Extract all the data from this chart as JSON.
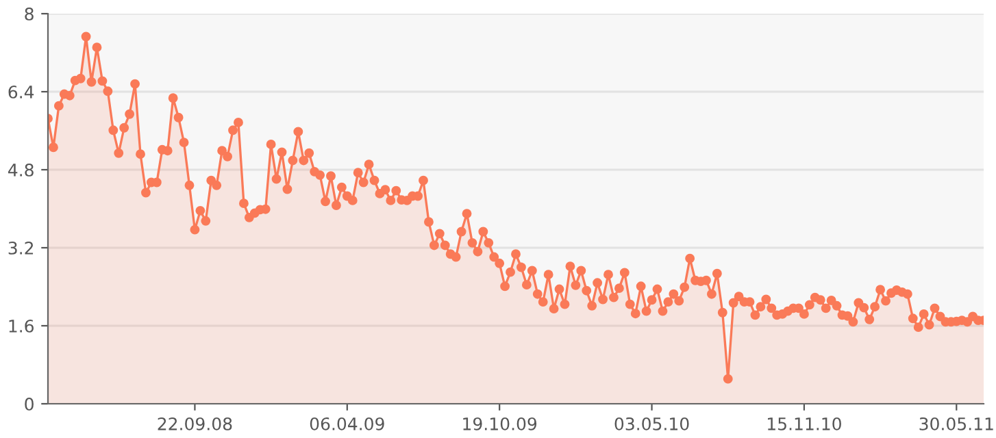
{
  "chart_data": {
    "type": "area",
    "marker": "circle",
    "grid": "y",
    "xlim": [
      "2008-03-17",
      "2011-07-04"
    ],
    "xticks": [
      {
        "value": "2008-09-22",
        "label": "22.09.08"
      },
      {
        "value": "2009-04-06",
        "label": "06.04.09"
      },
      {
        "value": "2009-10-19",
        "label": "19.10.09"
      },
      {
        "value": "2010-05-03",
        "label": "03.05.10"
      },
      {
        "value": "2010-11-15",
        "label": "15.11.10"
      },
      {
        "value": "2011-05-30",
        "label": "30.05.11"
      }
    ],
    "ylim": [
      0,
      8
    ],
    "yticks": [
      0,
      1.6,
      3.2,
      4.8,
      6.4,
      8
    ],
    "series": [
      {
        "color": "#fa7a58",
        "x": [
          "2008-03-17",
          "2008-03-24",
          "2008-03-31",
          "2008-04-07",
          "2008-04-14",
          "2008-04-21",
          "2008-04-28",
          "2008-05-05",
          "2008-05-12",
          "2008-05-19",
          "2008-05-26",
          "2008-06-02",
          "2008-06-09",
          "2008-06-16",
          "2008-06-23",
          "2008-06-30",
          "2008-07-07",
          "2008-07-14",
          "2008-07-21",
          "2008-07-28",
          "2008-08-04",
          "2008-08-11",
          "2008-08-18",
          "2008-08-25",
          "2008-09-01",
          "2008-09-08",
          "2008-09-15",
          "2008-09-22",
          "2008-09-29",
          "2008-10-06",
          "2008-10-13",
          "2008-10-20",
          "2008-10-27",
          "2008-11-03",
          "2008-11-10",
          "2008-11-17",
          "2008-11-24",
          "2008-12-01",
          "2008-12-08",
          "2008-12-15",
          "2008-12-22",
          "2008-12-29",
          "2009-01-05",
          "2009-01-12",
          "2009-01-19",
          "2009-01-26",
          "2009-02-02",
          "2009-02-09",
          "2009-02-16",
          "2009-02-23",
          "2009-03-02",
          "2009-03-09",
          "2009-03-16",
          "2009-03-23",
          "2009-03-30",
          "2009-04-06",
          "2009-04-13",
          "2009-04-20",
          "2009-04-27",
          "2009-05-04",
          "2009-05-11",
          "2009-05-18",
          "2009-05-25",
          "2009-06-01",
          "2009-06-08",
          "2009-06-15",
          "2009-06-22",
          "2009-06-29",
          "2009-07-06",
          "2009-07-13",
          "2009-07-20",
          "2009-07-27",
          "2009-08-03",
          "2009-08-10",
          "2009-08-17",
          "2009-08-24",
          "2009-08-31",
          "2009-09-07",
          "2009-09-14",
          "2009-09-21",
          "2009-09-28",
          "2009-10-05",
          "2009-10-12",
          "2009-10-19",
          "2009-10-26",
          "2009-11-02",
          "2009-11-09",
          "2009-11-16",
          "2009-11-23",
          "2009-11-30",
          "2009-12-07",
          "2009-12-14",
          "2009-12-21",
          "2009-12-28",
          "2010-01-04",
          "2010-01-11",
          "2010-01-18",
          "2010-01-25",
          "2010-02-01",
          "2010-02-08",
          "2010-02-15",
          "2010-02-22",
          "2010-03-01",
          "2010-03-08",
          "2010-03-15",
          "2010-03-22",
          "2010-03-29",
          "2010-04-05",
          "2010-04-12",
          "2010-04-19",
          "2010-04-26",
          "2010-05-03",
          "2010-05-10",
          "2010-05-17",
          "2010-05-24",
          "2010-05-31",
          "2010-06-07",
          "2010-06-14",
          "2010-06-21",
          "2010-06-28",
          "2010-07-05",
          "2010-07-12",
          "2010-07-19",
          "2010-07-26",
          "2010-08-02",
          "2010-08-09",
          "2010-08-16",
          "2010-08-23",
          "2010-08-30",
          "2010-09-06",
          "2010-09-13",
          "2010-09-20",
          "2010-09-27",
          "2010-10-04",
          "2010-10-11",
          "2010-10-18",
          "2010-10-25",
          "2010-11-01",
          "2010-11-08",
          "2010-11-15",
          "2010-11-22",
          "2010-11-29",
          "2010-12-06",
          "2010-12-13",
          "2010-12-20",
          "2010-12-27",
          "2011-01-03",
          "2011-01-10",
          "2011-01-17",
          "2011-01-24",
          "2011-01-31",
          "2011-02-07",
          "2011-02-14",
          "2011-02-21",
          "2011-02-28",
          "2011-03-07",
          "2011-03-14",
          "2011-03-21",
          "2011-03-28",
          "2011-04-04",
          "2011-04-11",
          "2011-04-18",
          "2011-04-25",
          "2011-05-02",
          "2011-05-09",
          "2011-05-16",
          "2011-05-23",
          "2011-05-30",
          "2011-06-06",
          "2011-06-13",
          "2011-06-20",
          "2011-06-27",
          "2011-07-04"
        ],
        "values": [
          5.85,
          5.26,
          6.11,
          6.35,
          6.32,
          6.63,
          6.67,
          7.53,
          6.6,
          7.31,
          6.62,
          6.41,
          5.61,
          5.14,
          5.66,
          5.94,
          6.56,
          5.12,
          4.33,
          4.54,
          4.54,
          5.21,
          5.19,
          6.27,
          5.87,
          5.36,
          4.48,
          3.57,
          3.96,
          3.75,
          4.58,
          4.48,
          5.19,
          5.07,
          5.61,
          5.77,
          4.11,
          3.82,
          3.91,
          3.98,
          3.99,
          5.32,
          4.61,
          5.16,
          4.4,
          4.99,
          5.58,
          4.99,
          5.14,
          4.76,
          4.69,
          4.15,
          4.67,
          4.07,
          4.44,
          4.26,
          4.17,
          4.74,
          4.54,
          4.91,
          4.58,
          4.31,
          4.39,
          4.17,
          4.37,
          4.18,
          4.17,
          4.26,
          4.26,
          4.58,
          3.73,
          3.25,
          3.49,
          3.25,
          3.07,
          3.01,
          3.53,
          3.9,
          3.3,
          3.12,
          3.53,
          3.3,
          3.01,
          2.88,
          2.41,
          2.7,
          3.07,
          2.8,
          2.44,
          2.73,
          2.25,
          2.09,
          2.65,
          1.95,
          2.35,
          2.04,
          2.82,
          2.43,
          2.73,
          2.32,
          2.01,
          2.48,
          2.14,
          2.65,
          2.18,
          2.37,
          2.69,
          2.04,
          1.85,
          2.41,
          1.9,
          2.13,
          2.35,
          1.9,
          2.09,
          2.25,
          2.11,
          2.39,
          2.98,
          2.53,
          2.51,
          2.53,
          2.25,
          2.67,
          1.87,
          0.51,
          2.07,
          2.2,
          2.09,
          2.09,
          1.82,
          1.99,
          2.14,
          1.96,
          1.82,
          1.84,
          1.9,
          1.96,
          1.96,
          1.84,
          2.03,
          2.18,
          2.13,
          1.96,
          2.12,
          2.01,
          1.82,
          1.8,
          1.68,
          2.07,
          1.97,
          1.73,
          1.99,
          2.34,
          2.11,
          2.27,
          2.33,
          2.29,
          2.25,
          1.75,
          1.57,
          1.84,
          1.62,
          1.96,
          1.79,
          1.68,
          1.68,
          1.69,
          1.71,
          1.68,
          1.79,
          1.71,
          1.71
        ]
      }
    ]
  }
}
